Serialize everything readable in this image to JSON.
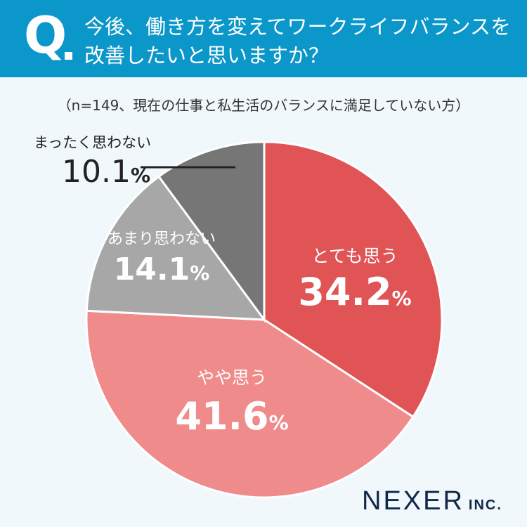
{
  "header": {
    "q_mark": "Q",
    "title": "今後、働き方を変えてワークライフバランスを改善したいと思いますか？"
  },
  "note": "（n=149、現在の仕事と私生活のバランスに満足していない方）",
  "chart_data": {
    "type": "pie",
    "start": "top",
    "direction": "clockwise",
    "unit": "%",
    "slices": [
      {
        "label": "とても思う",
        "value": 34.2,
        "display": "34.2",
        "color": "#e05456"
      },
      {
        "label": "やや思う",
        "value": 41.6,
        "display": "41.6",
        "color": "#ef8b8b"
      },
      {
        "label": "あまり思わない",
        "value": 14.1,
        "display": "14.1",
        "color": "#a7a7a7"
      },
      {
        "label": "まったく思わない",
        "value": 10.1,
        "display": "10.1",
        "color": "#767676"
      }
    ]
  },
  "logo": {
    "main": "NEXER",
    "suffix": "INC."
  }
}
